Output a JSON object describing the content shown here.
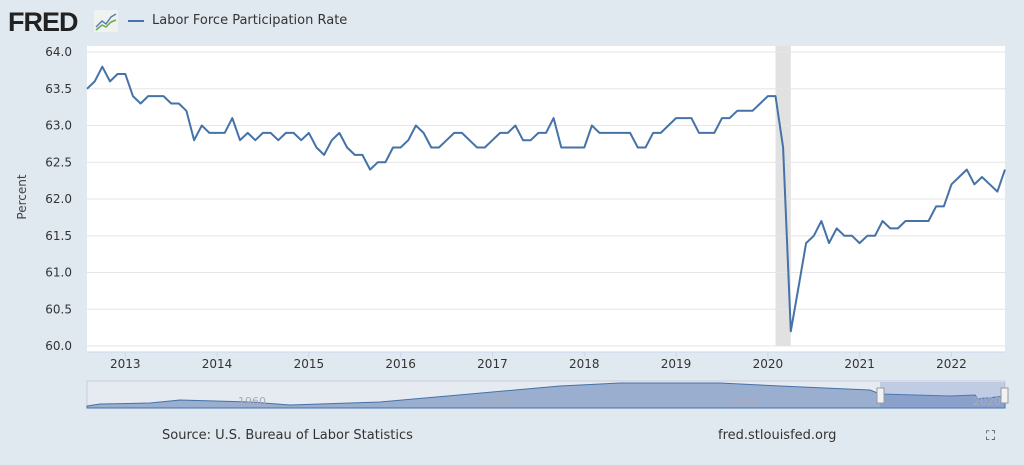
{
  "header": {
    "logo": "FRED",
    "legend_label": "Labor Force Participation Rate",
    "series_color": "#4572a7"
  },
  "footer": {
    "source": "Source: U.S. Bureau of Labor Statistics",
    "url": "fred.stlouisfed.org",
    "fullscreen_icon": "fullscreen-icon"
  },
  "navigator": {
    "ticks": [
      "1960",
      "1980",
      "2000",
      "2020"
    ]
  },
  "chart_data": {
    "type": "line",
    "title": "",
    "xlabel": "",
    "ylabel": "Percent",
    "ylim": [
      60.0,
      64.0
    ],
    "yticks": [
      "60.0",
      "60.5",
      "61.0",
      "61.5",
      "62.0",
      "62.5",
      "63.0",
      "63.5",
      "64.0"
    ],
    "xticks": [
      "2013",
      "2014",
      "2015",
      "2016",
      "2017",
      "2018",
      "2019",
      "2020",
      "2021",
      "2022"
    ],
    "x_start": "2012-08",
    "x_end": "2022-08",
    "frequency": "monthly",
    "grid": true,
    "recession_shading": {
      "from": "2020-02",
      "to": "2020-04"
    },
    "series": [
      {
        "name": "Labor Force Participation Rate",
        "values": [
          63.5,
          63.6,
          63.8,
          63.6,
          63.7,
          63.7,
          63.4,
          63.3,
          63.4,
          63.4,
          63.4,
          63.3,
          63.3,
          63.2,
          62.8,
          63.0,
          62.9,
          62.9,
          62.9,
          63.1,
          62.8,
          62.9,
          62.8,
          62.9,
          62.9,
          62.8,
          62.9,
          62.9,
          62.8,
          62.9,
          62.7,
          62.6,
          62.8,
          62.9,
          62.7,
          62.6,
          62.6,
          62.4,
          62.5,
          62.5,
          62.7,
          62.7,
          62.8,
          63.0,
          62.9,
          62.7,
          62.7,
          62.8,
          62.9,
          62.9,
          62.8,
          62.7,
          62.7,
          62.8,
          62.9,
          62.9,
          63.0,
          62.8,
          62.8,
          62.9,
          62.9,
          63.1,
          62.7,
          62.7,
          62.7,
          62.7,
          63.0,
          62.9,
          62.9,
          62.9,
          62.9,
          62.9,
          62.7,
          62.7,
          62.9,
          62.9,
          63.0,
          63.1,
          63.1,
          63.1,
          62.9,
          62.9,
          62.9,
          63.1,
          63.1,
          63.2,
          63.2,
          63.2,
          63.3,
          63.4,
          63.4,
          62.7,
          60.2,
          60.8,
          61.4,
          61.5,
          61.7,
          61.4,
          61.6,
          61.5,
          61.5,
          61.4,
          61.5,
          61.5,
          61.7,
          61.6,
          61.6,
          61.7,
          61.7,
          61.7,
          61.7,
          61.9,
          61.9,
          62.2,
          62.3,
          62.4,
          62.2,
          62.3,
          62.2,
          62.1,
          62.4
        ]
      }
    ]
  }
}
